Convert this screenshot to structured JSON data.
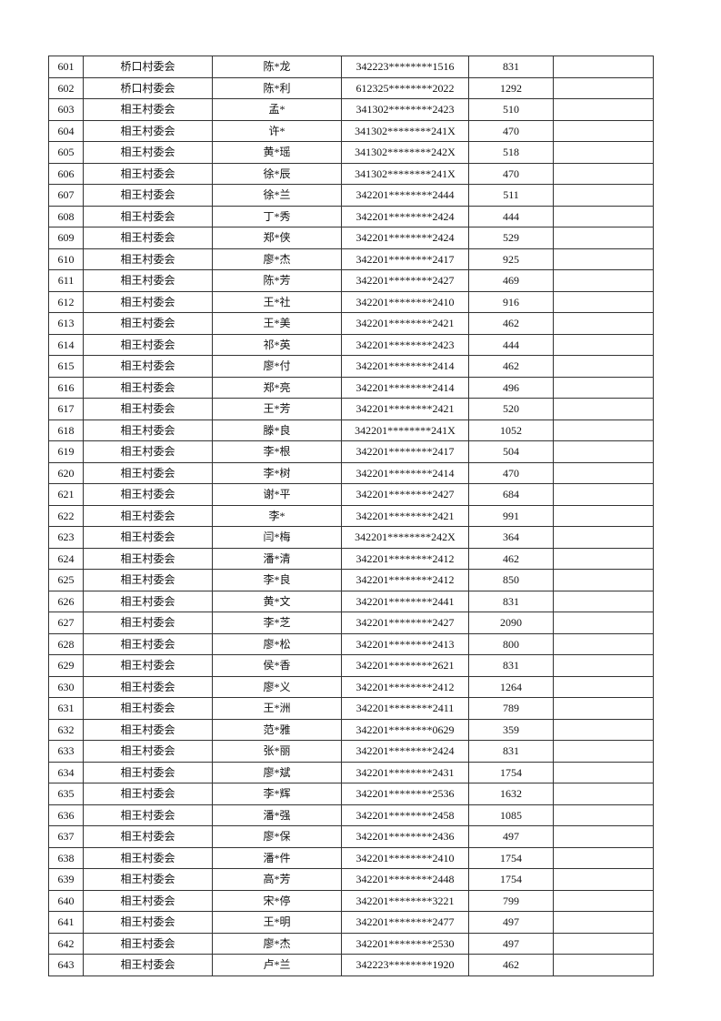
{
  "table": {
    "rows": [
      [
        "601",
        "桥口村委会",
        "陈*龙",
        "342223********1516",
        "831",
        ""
      ],
      [
        "602",
        "桥口村委会",
        "陈*利",
        "612325********2022",
        "1292",
        ""
      ],
      [
        "603",
        "相王村委会",
        "孟*",
        "341302********2423",
        "510",
        ""
      ],
      [
        "604",
        "相王村委会",
        "许*",
        "341302********241X",
        "470",
        ""
      ],
      [
        "605",
        "相王村委会",
        "黄*瑶",
        "341302********242X",
        "518",
        ""
      ],
      [
        "606",
        "相王村委会",
        "徐*辰",
        "341302********241X",
        "470",
        ""
      ],
      [
        "607",
        "相王村委会",
        "徐*兰",
        "342201********2444",
        "511",
        ""
      ],
      [
        "608",
        "相王村委会",
        "丁*秀",
        "342201********2424",
        "444",
        ""
      ],
      [
        "609",
        "相王村委会",
        "郑*侠",
        "342201********2424",
        "529",
        ""
      ],
      [
        "610",
        "相王村委会",
        "廖*杰",
        "342201********2417",
        "925",
        ""
      ],
      [
        "611",
        "相王村委会",
        "陈*芳",
        "342201********2427",
        "469",
        ""
      ],
      [
        "612",
        "相王村委会",
        "王*社",
        "342201********2410",
        "916",
        ""
      ],
      [
        "613",
        "相王村委会",
        "王*美",
        "342201********2421",
        "462",
        ""
      ],
      [
        "614",
        "相王村委会",
        "祁*英",
        "342201********2423",
        "444",
        ""
      ],
      [
        "615",
        "相王村委会",
        "廖*付",
        "342201********2414",
        "462",
        ""
      ],
      [
        "616",
        "相王村委会",
        "郑*亮",
        "342201********2414",
        "496",
        ""
      ],
      [
        "617",
        "相王村委会",
        "王*芳",
        "342201********2421",
        "520",
        ""
      ],
      [
        "618",
        "相王村委会",
        "滕*良",
        "342201********241X",
        "1052",
        ""
      ],
      [
        "619",
        "相王村委会",
        "李*根",
        "342201********2417",
        "504",
        ""
      ],
      [
        "620",
        "相王村委会",
        "李*树",
        "342201********2414",
        "470",
        ""
      ],
      [
        "621",
        "相王村委会",
        "谢*平",
        "342201********2427",
        "684",
        ""
      ],
      [
        "622",
        "相王村委会",
        "李*",
        "342201********2421",
        "991",
        ""
      ],
      [
        "623",
        "相王村委会",
        "闫*梅",
        "342201********242X",
        "364",
        ""
      ],
      [
        "624",
        "相王村委会",
        "潘*清",
        "342201********2412",
        "462",
        ""
      ],
      [
        "625",
        "相王村委会",
        "李*良",
        "342201********2412",
        "850",
        ""
      ],
      [
        "626",
        "相王村委会",
        "黄*文",
        "342201********2441",
        "831",
        ""
      ],
      [
        "627",
        "相王村委会",
        "李*芝",
        "342201********2427",
        "2090",
        ""
      ],
      [
        "628",
        "相王村委会",
        "廖*松",
        "342201********2413",
        "800",
        ""
      ],
      [
        "629",
        "相王村委会",
        "侯*香",
        "342201********2621",
        "831",
        ""
      ],
      [
        "630",
        "相王村委会",
        "廖*义",
        "342201********2412",
        "1264",
        ""
      ],
      [
        "631",
        "相王村委会",
        "王*洲",
        "342201********2411",
        "789",
        ""
      ],
      [
        "632",
        "相王村委会",
        "范*雅",
        "342201********0629",
        "359",
        ""
      ],
      [
        "633",
        "相王村委会",
        "张*丽",
        "342201********2424",
        "831",
        ""
      ],
      [
        "634",
        "相王村委会",
        "廖*斌",
        "342201********2431",
        "1754",
        ""
      ],
      [
        "635",
        "相王村委会",
        "李*辉",
        "342201********2536",
        "1632",
        ""
      ],
      [
        "636",
        "相王村委会",
        "潘*强",
        "342201********2458",
        "1085",
        ""
      ],
      [
        "637",
        "相王村委会",
        "廖*保",
        "342201********2436",
        "497",
        ""
      ],
      [
        "638",
        "相王村委会",
        "潘*件",
        "342201********2410",
        "1754",
        ""
      ],
      [
        "639",
        "相王村委会",
        "高*芳",
        "342201********2448",
        "1754",
        ""
      ],
      [
        "640",
        "相王村委会",
        "宋*停",
        "342201********3221",
        "799",
        ""
      ],
      [
        "641",
        "相王村委会",
        "王*明",
        "342201********2477",
        "497",
        ""
      ],
      [
        "642",
        "相王村委会",
        "廖*杰",
        "342201********2530",
        "497",
        ""
      ],
      [
        "643",
        "相王村委会",
        "卢*兰",
        "342223********1920",
        "462",
        ""
      ]
    ]
  }
}
